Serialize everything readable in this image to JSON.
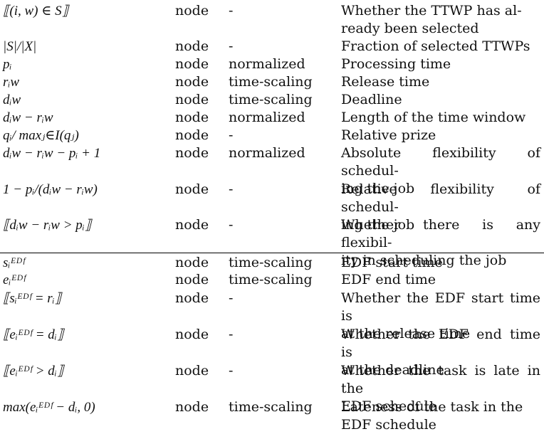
{
  "rows": [
    {
      "feature": "⟦(i, w) ∈ S⟧",
      "type": "node",
      "normalization": "-",
      "description": [
        "Whether the TTWP has al-",
        "ready been selected"
      ]
    },
    {
      "feature": "|S|/|X|",
      "type": "node",
      "normalization": "-",
      "description": [
        "Fraction of selected TTWPs"
      ]
    },
    {
      "feature": "pᵢ",
      "type": "node",
      "normalization": "normalized",
      "description": [
        "Processing time"
      ]
    },
    {
      "feature": "rᵢw",
      "type": "node",
      "normalization": "time-scaling",
      "description": [
        "Release time"
      ]
    },
    {
      "feature": "dᵢw",
      "type": "node",
      "normalization": "time-scaling",
      "description": [
        "Deadline"
      ]
    },
    {
      "feature": "dᵢw − rᵢw",
      "type": "node",
      "normalization": "normalized",
      "description": [
        "Length of the time window"
      ]
    },
    {
      "feature": "qᵢ/ maxⱼ∈I(qⱼ)",
      "type": "node",
      "normalization": "-",
      "description": [
        "Relative prize"
      ]
    },
    {
      "feature": "dᵢw − rᵢw − pᵢ + 1",
      "type": "node",
      "normalization": "normalized",
      "description": [
        "Absolute flexibility of schedul-",
        "ing the job"
      ]
    },
    {
      "feature": "1 − pᵢ/(dᵢw − rᵢw)",
      "type": "node",
      "normalization": "-",
      "description": [
        "Relative flexibility of schedul-",
        "ing the job"
      ]
    },
    {
      "feature": "⟦dᵢw − rᵢw > pᵢ⟧",
      "type": "node",
      "normalization": "-",
      "description": [
        "Whether there is any flexibil-",
        "ity in scheduling the job"
      ]
    },
    {
      "feature": "sᵢᴱᴰᶠ",
      "type": "node",
      "normalization": "time-scaling",
      "description": [
        "EDF start time"
      ]
    },
    {
      "feature": "eᵢᴱᴰᶠ",
      "type": "node",
      "normalization": "time-scaling",
      "description": [
        "EDF end time"
      ]
    },
    {
      "feature": "⟦sᵢᴱᴰᶠ = rᵢ⟧",
      "type": "node",
      "normalization": "-",
      "description": [
        "Whether the EDF start time is",
        "at the release time"
      ]
    },
    {
      "feature": "⟦eᵢᴱᴰᶠ = dᵢ⟧",
      "type": "node",
      "normalization": "-",
      "description": [
        "Whether the EDF end time is",
        "at the deadline"
      ]
    },
    {
      "feature": "⟦eᵢᴱᴰᶠ > dᵢ⟧",
      "type": "node",
      "normalization": "-",
      "description": [
        "Whether the task is late in the",
        "EDF schedule"
      ]
    },
    {
      "feature": "max(eᵢᴱᴰᶠ − dᵢ, 0)",
      "type": "node",
      "normalization": "time-scaling",
      "description": [
        "Lateness of the task in the",
        "EDF schedule"
      ]
    }
  ]
}
